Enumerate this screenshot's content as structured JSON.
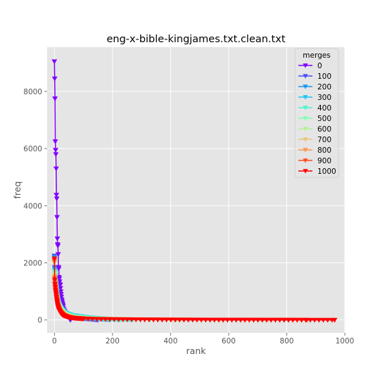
{
  "chart_data": {
    "type": "line",
    "title": "eng-x-bible-kingjames.txt.clean.txt",
    "xlabel": "rank",
    "ylabel": "freq",
    "xlim": [
      -25,
      1000
    ],
    "ylim": [
      -450,
      9550
    ],
    "x_ticks": [
      0,
      200,
      400,
      600,
      800,
      1000
    ],
    "y_ticks": [
      0,
      2000,
      4000,
      6000,
      8000
    ],
    "grid": true,
    "marker": "triangle-down",
    "legend": {
      "title": "merges",
      "position": "top-right"
    },
    "series": [
      {
        "name": "0",
        "color": "#8000ff",
        "x_max": 55,
        "points": [
          [
            0,
            9050
          ],
          [
            1,
            8450
          ],
          [
            2,
            7750
          ],
          [
            3,
            6250
          ],
          [
            4,
            5950
          ],
          [
            5,
            5800
          ],
          [
            6,
            5300
          ],
          [
            7,
            4380
          ],
          [
            8,
            4250
          ],
          [
            9,
            3600
          ],
          [
            10,
            2850
          ],
          [
            11,
            2650
          ],
          [
            12,
            2600
          ],
          [
            13,
            2300
          ],
          [
            14,
            1850
          ],
          [
            15,
            1800
          ],
          [
            16,
            1500
          ],
          [
            17,
            1450
          ],
          [
            18,
            1350
          ],
          [
            19,
            1250
          ],
          [
            20,
            1230
          ],
          [
            22,
            1000
          ],
          [
            25,
            720
          ],
          [
            28,
            560
          ],
          [
            32,
            400
          ],
          [
            36,
            300
          ],
          [
            40,
            220
          ],
          [
            45,
            140
          ],
          [
            50,
            80
          ],
          [
            55,
            0
          ]
        ]
      },
      {
        "name": "100",
        "color": "#4d4dfc",
        "x_max": 150,
        "points": [
          [
            0,
            2250
          ],
          [
            1,
            1850
          ],
          [
            2,
            1700
          ],
          [
            3,
            1550
          ],
          [
            4,
            1450
          ],
          [
            5,
            1380
          ],
          [
            6,
            1300
          ],
          [
            8,
            1100
          ],
          [
            10,
            900
          ],
          [
            12,
            760
          ],
          [
            15,
            620
          ],
          [
            20,
            480
          ],
          [
            25,
            390
          ],
          [
            30,
            320
          ],
          [
            40,
            230
          ],
          [
            50,
            170
          ],
          [
            60,
            130
          ],
          [
            80,
            80
          ],
          [
            100,
            50
          ],
          [
            120,
            30
          ],
          [
            150,
            0
          ]
        ]
      },
      {
        "name": "200",
        "color": "#1996f3",
        "x_max": 190,
        "points": [
          [
            0,
            2200
          ],
          [
            1,
            1800
          ],
          [
            2,
            1650
          ],
          [
            3,
            1500
          ],
          [
            4,
            1400
          ],
          [
            5,
            1320
          ],
          [
            6,
            1250
          ],
          [
            8,
            1050
          ],
          [
            10,
            880
          ],
          [
            12,
            740
          ],
          [
            15,
            600
          ],
          [
            20,
            470
          ],
          [
            25,
            380
          ],
          [
            30,
            320
          ],
          [
            40,
            240
          ],
          [
            50,
            190
          ],
          [
            60,
            160
          ],
          [
            80,
            120
          ],
          [
            100,
            90
          ],
          [
            130,
            60
          ],
          [
            160,
            35
          ],
          [
            190,
            10
          ]
        ]
      },
      {
        "name": "300",
        "color": "#1ac7f0",
        "x_max": 225,
        "points": [
          [
            0,
            2150
          ],
          [
            1,
            1750
          ],
          [
            2,
            1600
          ],
          [
            3,
            1450
          ],
          [
            4,
            1350
          ],
          [
            5,
            1280
          ],
          [
            6,
            1200
          ],
          [
            8,
            1000
          ],
          [
            10,
            840
          ],
          [
            12,
            700
          ],
          [
            15,
            580
          ],
          [
            20,
            450
          ],
          [
            25,
            370
          ],
          [
            30,
            310
          ],
          [
            40,
            240
          ],
          [
            50,
            200
          ],
          [
            60,
            170
          ],
          [
            80,
            140
          ],
          [
            100,
            110
          ],
          [
            130,
            80
          ],
          [
            160,
            55
          ],
          [
            190,
            35
          ],
          [
            225,
            15
          ]
        ]
      },
      {
        "name": "400",
        "color": "#4df3ce",
        "x_max": 270,
        "points": [
          [
            0,
            2100
          ],
          [
            1,
            1700
          ],
          [
            2,
            1550
          ],
          [
            3,
            1400
          ],
          [
            4,
            1300
          ],
          [
            5,
            1230
          ],
          [
            6,
            1150
          ],
          [
            8,
            960
          ],
          [
            10,
            800
          ],
          [
            12,
            670
          ],
          [
            15,
            550
          ],
          [
            20,
            430
          ],
          [
            25,
            350
          ],
          [
            30,
            290
          ],
          [
            40,
            220
          ],
          [
            50,
            180
          ],
          [
            60,
            150
          ],
          [
            80,
            120
          ],
          [
            100,
            95
          ],
          [
            130,
            70
          ],
          [
            170,
            48
          ],
          [
            210,
            30
          ],
          [
            270,
            12
          ]
        ]
      },
      {
        "name": "500",
        "color": "#80ffb4",
        "x_max": 330,
        "points": [
          [
            0,
            2050
          ],
          [
            1,
            1650
          ],
          [
            2,
            1500
          ],
          [
            3,
            1360
          ],
          [
            4,
            1260
          ],
          [
            5,
            1190
          ],
          [
            6,
            1110
          ],
          [
            8,
            920
          ],
          [
            10,
            770
          ],
          [
            12,
            640
          ],
          [
            15,
            520
          ],
          [
            20,
            400
          ],
          [
            25,
            330
          ],
          [
            30,
            270
          ],
          [
            40,
            200
          ],
          [
            50,
            160
          ],
          [
            60,
            130
          ],
          [
            80,
            100
          ],
          [
            100,
            80
          ],
          [
            140,
            55
          ],
          [
            190,
            38
          ],
          [
            250,
            25
          ],
          [
            330,
            10
          ]
        ]
      },
      {
        "name": "600",
        "color": "#b3f396",
        "x_max": 420,
        "points": [
          [
            0,
            2000
          ],
          [
            1,
            1600
          ],
          [
            2,
            1450
          ],
          [
            3,
            1320
          ],
          [
            4,
            1220
          ],
          [
            5,
            1150
          ],
          [
            6,
            1070
          ],
          [
            8,
            880
          ],
          [
            10,
            730
          ],
          [
            12,
            610
          ],
          [
            15,
            490
          ],
          [
            20,
            370
          ],
          [
            25,
            300
          ],
          [
            30,
            250
          ],
          [
            40,
            180
          ],
          [
            50,
            140
          ],
          [
            60,
            115
          ],
          [
            80,
            85
          ],
          [
            100,
            68
          ],
          [
            140,
            48
          ],
          [
            200,
            32
          ],
          [
            280,
            20
          ],
          [
            350,
            12
          ],
          [
            420,
            8
          ]
        ]
      },
      {
        "name": "700",
        "color": "#e6c778",
        "x_max": 580,
        "points": [
          [
            0,
            2000
          ],
          [
            1,
            1550
          ],
          [
            2,
            1400
          ],
          [
            3,
            1280
          ],
          [
            4,
            1180
          ],
          [
            5,
            1100
          ],
          [
            6,
            1020
          ],
          [
            8,
            840
          ],
          [
            10,
            700
          ],
          [
            12,
            580
          ],
          [
            15,
            460
          ],
          [
            20,
            340
          ],
          [
            25,
            270
          ],
          [
            30,
            220
          ],
          [
            40,
            160
          ],
          [
            50,
            125
          ],
          [
            60,
            100
          ],
          [
            80,
            75
          ],
          [
            100,
            60
          ],
          [
            140,
            42
          ],
          [
            200,
            30
          ],
          [
            280,
            20
          ],
          [
            380,
            12
          ],
          [
            480,
            8
          ],
          [
            580,
            5
          ]
        ]
      },
      {
        "name": "800",
        "color": "#ff964d",
        "x_max": 730,
        "points": [
          [
            0,
            2050
          ],
          [
            1,
            1500
          ],
          [
            2,
            1350
          ],
          [
            3,
            1230
          ],
          [
            4,
            1130
          ],
          [
            5,
            1050
          ],
          [
            6,
            970
          ],
          [
            8,
            800
          ],
          [
            10,
            670
          ],
          [
            12,
            550
          ],
          [
            15,
            430
          ],
          [
            20,
            310
          ],
          [
            25,
            250
          ],
          [
            30,
            200
          ],
          [
            40,
            145
          ],
          [
            50,
            112
          ],
          [
            60,
            90
          ],
          [
            80,
            68
          ],
          [
            100,
            55
          ],
          [
            140,
            38
          ],
          [
            200,
            27
          ],
          [
            300,
            17
          ],
          [
            420,
            10
          ],
          [
            560,
            6
          ],
          [
            650,
            4
          ],
          [
            730,
            2
          ]
        ]
      },
      {
        "name": "900",
        "color": "#ff4d27",
        "x_max": 870,
        "points": [
          [
            0,
            2100
          ],
          [
            1,
            1450
          ],
          [
            2,
            1300
          ],
          [
            3,
            1190
          ],
          [
            4,
            1090
          ],
          [
            5,
            1010
          ],
          [
            6,
            930
          ],
          [
            8,
            760
          ],
          [
            10,
            640
          ],
          [
            12,
            520
          ],
          [
            15,
            400
          ],
          [
            20,
            290
          ],
          [
            25,
            230
          ],
          [
            30,
            185
          ],
          [
            40,
            135
          ],
          [
            50,
            105
          ],
          [
            60,
            85
          ],
          [
            80,
            63
          ],
          [
            100,
            50
          ],
          [
            140,
            35
          ],
          [
            200,
            25
          ],
          [
            300,
            15
          ],
          [
            420,
            10
          ],
          [
            560,
            6
          ],
          [
            700,
            4
          ],
          [
            870,
            2
          ]
        ]
      },
      {
        "name": "1000",
        "color": "#ff0000",
        "x_max": 965,
        "points": [
          [
            0,
            2150
          ],
          [
            1,
            1400
          ],
          [
            2,
            1250
          ],
          [
            3,
            1150
          ],
          [
            4,
            1050
          ],
          [
            5,
            970
          ],
          [
            6,
            890
          ],
          [
            8,
            720
          ],
          [
            10,
            600
          ],
          [
            12,
            490
          ],
          [
            15,
            370
          ],
          [
            20,
            270
          ],
          [
            25,
            210
          ],
          [
            30,
            170
          ],
          [
            40,
            125
          ],
          [
            50,
            97
          ],
          [
            60,
            78
          ],
          [
            80,
            58
          ],
          [
            100,
            46
          ],
          [
            140,
            33
          ],
          [
            200,
            23
          ],
          [
            300,
            14
          ],
          [
            420,
            9
          ],
          [
            560,
            6
          ],
          [
            700,
            4
          ],
          [
            850,
            2
          ],
          [
            965,
            1
          ]
        ]
      }
    ]
  }
}
